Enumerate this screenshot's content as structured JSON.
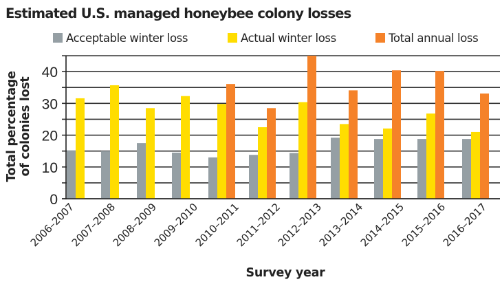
{
  "chart_data": {
    "type": "bar",
    "title": "Estimated U.S. managed honeybee colony losses",
    "xlabel": "Survey year",
    "ylabel": [
      "Total percentage",
      "of colonies lost"
    ],
    "ylim": [
      0,
      45
    ],
    "yticks": [
      0,
      10,
      20,
      30,
      40
    ],
    "grid_step": 5,
    "grid": true,
    "legend_position": "top",
    "categories": [
      "2006–2007",
      "2007–2008",
      "2008–2009",
      "2009–2010",
      "2010–2011",
      "2011–2012",
      "2012–2013",
      "2013–2014",
      "2014–2015",
      "2015–2016",
      "2016–2017"
    ],
    "series": [
      {
        "name": "Acceptable winter loss",
        "color": "#959FA4",
        "values": [
          15.2,
          15.0,
          17.5,
          14.5,
          13.0,
          13.8,
          14.4,
          19.2,
          18.8,
          18.8,
          18.8
        ]
      },
      {
        "name": "Actual winter loss",
        "color": "#FFDD00",
        "values": [
          31.6,
          35.7,
          28.5,
          32.3,
          29.8,
          22.5,
          30.4,
          23.5,
          22.1,
          26.8,
          21.0
        ]
      },
      {
        "name": "Total annual loss",
        "color": "#F58229",
        "values": [
          null,
          null,
          null,
          null,
          36.1,
          28.5,
          45.0,
          34.1,
          40.4,
          40.2,
          33.1
        ]
      }
    ]
  }
}
